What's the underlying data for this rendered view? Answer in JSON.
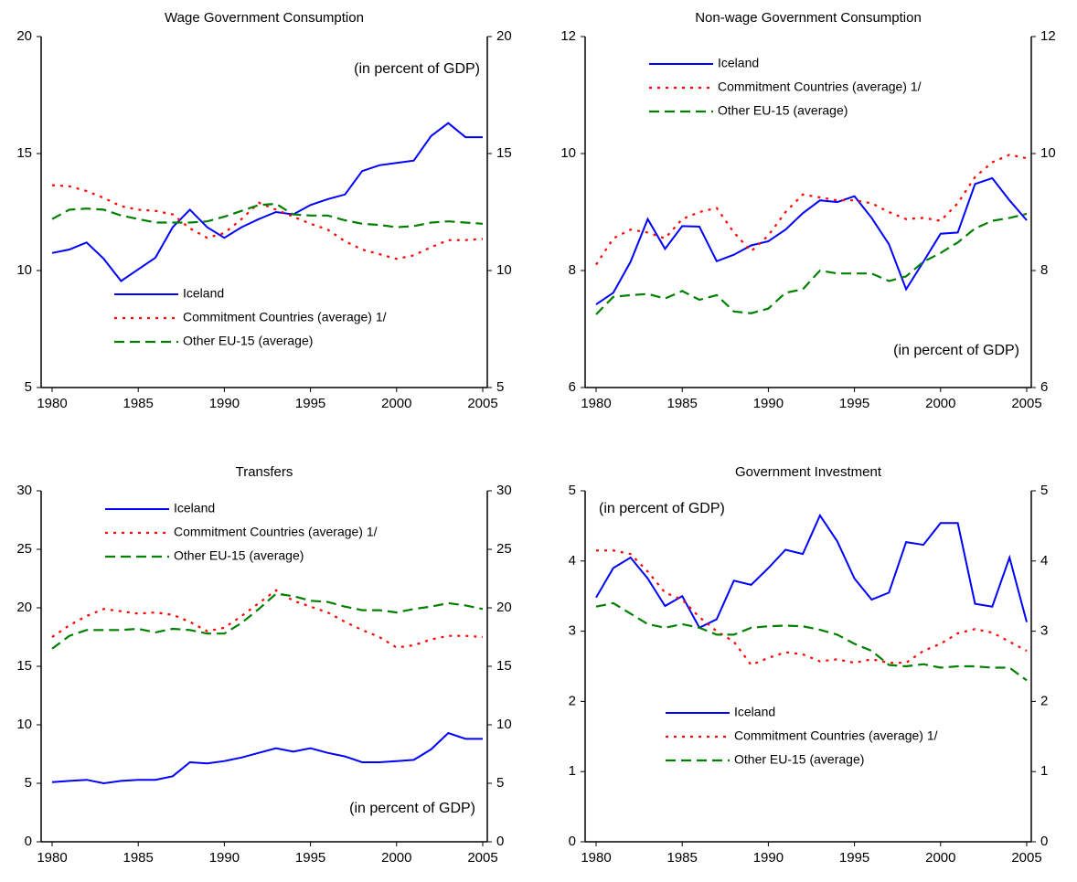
{
  "chart_data": [
    {
      "type": "line",
      "title": "Wage Government Consumption",
      "annotation": "(in percent of GDP)",
      "x": [
        1980,
        1981,
        1982,
        1983,
        1984,
        1985,
        1986,
        1987,
        1988,
        1989,
        1990,
        1991,
        1992,
        1993,
        1994,
        1995,
        1996,
        1997,
        1998,
        1999,
        2000,
        2001,
        2002,
        2003,
        2004,
        2005
      ],
      "xlim": [
        1980,
        2005
      ],
      "xticks": [
        1980,
        1985,
        1990,
        1995,
        2000,
        2005
      ],
      "ylim": [
        5,
        20
      ],
      "yticks": [
        5,
        10,
        15,
        20
      ],
      "series": [
        {
          "name": "Iceland",
          "color": "#0000ff",
          "values": [
            10.75,
            10.9,
            11.2,
            10.5,
            9.55,
            10.05,
            10.55,
            11.85,
            12.6,
            11.85,
            11.4,
            11.85,
            12.2,
            12.5,
            12.4,
            12.8,
            13.05,
            13.25,
            14.25,
            14.5,
            14.6,
            14.7,
            15.75,
            16.3,
            15.7,
            15.7
          ]
        },
        {
          "name": "Commitment Countries (average) 1/",
          "color": "#ff0000",
          "values": [
            13.65,
            13.6,
            13.4,
            13.1,
            12.75,
            12.6,
            12.55,
            12.4,
            11.8,
            11.4,
            11.6,
            12.2,
            12.9,
            12.6,
            12.3,
            12.0,
            11.75,
            11.25,
            10.9,
            10.7,
            10.5,
            10.65,
            11.0,
            11.3,
            11.3,
            11.35
          ]
        },
        {
          "name": "Other EU-15 (average)",
          "color": "#008000",
          "values": [
            12.2,
            12.6,
            12.65,
            12.6,
            12.35,
            12.2,
            12.05,
            12.05,
            12.05,
            12.1,
            12.3,
            12.55,
            12.8,
            12.85,
            12.4,
            12.35,
            12.35,
            12.15,
            12.0,
            11.95,
            11.85,
            11.9,
            12.05,
            12.1,
            12.05,
            12.0
          ]
        }
      ]
    },
    {
      "type": "line",
      "title": "Non-wage Government Consumption",
      "annotation": "(in percent of GDP)",
      "x": [
        1980,
        1981,
        1982,
        1983,
        1984,
        1985,
        1986,
        1987,
        1988,
        1989,
        1990,
        1991,
        1992,
        1993,
        1994,
        1995,
        1996,
        1997,
        1998,
        1999,
        2000,
        2001,
        2002,
        2003,
        2004,
        2005
      ],
      "xlim": [
        1980,
        2005
      ],
      "xticks": [
        1980,
        1985,
        1990,
        1995,
        2000,
        2005
      ],
      "ylim": [
        6,
        12
      ],
      "yticks": [
        6,
        8,
        10,
        12
      ],
      "series": [
        {
          "name": "Iceland",
          "color": "#0000ff",
          "values": [
            7.42,
            7.62,
            8.15,
            8.88,
            8.37,
            8.76,
            8.75,
            8.16,
            8.27,
            8.43,
            8.5,
            8.7,
            8.98,
            9.2,
            9.17,
            9.27,
            8.9,
            8.45,
            7.68,
            8.15,
            8.63,
            8.65,
            9.48,
            9.58,
            9.2,
            8.86
          ]
        },
        {
          "name": "Commitment Countries (average) 1/",
          "color": "#ff0000",
          "values": [
            8.1,
            8.55,
            8.7,
            8.65,
            8.55,
            8.88,
            9.0,
            9.07,
            8.65,
            8.33,
            8.6,
            9.0,
            9.3,
            9.25,
            9.2,
            9.2,
            9.15,
            9.0,
            8.88,
            8.9,
            8.85,
            9.15,
            9.6,
            9.85,
            9.98,
            9.92
          ]
        },
        {
          "name": "Other EU-15 (average)",
          "color": "#008000",
          "values": [
            7.25,
            7.55,
            7.58,
            7.6,
            7.52,
            7.65,
            7.5,
            7.58,
            7.3,
            7.27,
            7.35,
            7.62,
            7.68,
            8.0,
            7.95,
            7.95,
            7.95,
            7.82,
            7.9,
            8.15,
            8.3,
            8.48,
            8.72,
            8.85,
            8.9,
            8.97
          ]
        }
      ]
    },
    {
      "type": "line",
      "title": "Transfers",
      "annotation": "(in percent of GDP)",
      "x": [
        1980,
        1981,
        1982,
        1983,
        1984,
        1985,
        1986,
        1987,
        1988,
        1989,
        1990,
        1991,
        1992,
        1993,
        1994,
        1995,
        1996,
        1997,
        1998,
        1999,
        2000,
        2001,
        2002,
        2003,
        2004,
        2005
      ],
      "xlim": [
        1980,
        2005
      ],
      "xticks": [
        1980,
        1985,
        1990,
        1995,
        2000,
        2005
      ],
      "ylim": [
        0,
        30
      ],
      "yticks": [
        0,
        5,
        10,
        15,
        20,
        25,
        30
      ],
      "series": [
        {
          "name": "Iceland",
          "color": "#0000ff",
          "values": [
            5.1,
            5.2,
            5.3,
            5.0,
            5.2,
            5.3,
            5.3,
            5.6,
            6.8,
            6.7,
            6.9,
            7.2,
            7.6,
            8.0,
            7.7,
            8.0,
            7.6,
            7.3,
            6.8,
            6.8,
            6.9,
            7.0,
            7.9,
            9.3,
            8.8,
            8.8
          ]
        },
        {
          "name": "Commitment Countries (average) 1/",
          "color": "#ff0000",
          "values": [
            17.5,
            18.5,
            19.3,
            19.9,
            19.7,
            19.5,
            19.6,
            19.4,
            18.8,
            18.0,
            18.3,
            19.3,
            20.4,
            21.5,
            20.6,
            20.1,
            19.6,
            18.8,
            18.1,
            17.5,
            16.6,
            16.8,
            17.3,
            17.6,
            17.6,
            17.5
          ]
        },
        {
          "name": "Other EU-15 (average)",
          "color": "#008000",
          "values": [
            16.5,
            17.6,
            18.1,
            18.1,
            18.1,
            18.2,
            17.9,
            18.2,
            18.1,
            17.8,
            17.8,
            18.7,
            19.9,
            21.2,
            21.0,
            20.6,
            20.5,
            20.1,
            19.8,
            19.8,
            19.6,
            19.9,
            20.1,
            20.4,
            20.2,
            19.9
          ]
        }
      ]
    },
    {
      "type": "line",
      "title": "Government Investment",
      "annotation": "(in percent of GDP)",
      "x": [
        1980,
        1981,
        1982,
        1983,
        1984,
        1985,
        1986,
        1987,
        1988,
        1989,
        1990,
        1991,
        1992,
        1993,
        1994,
        1995,
        1996,
        1997,
        1998,
        1999,
        2000,
        2001,
        2002,
        2003,
        2004,
        2005
      ],
      "xlim": [
        1980,
        2005
      ],
      "xticks": [
        1980,
        1985,
        1990,
        1995,
        2000,
        2005
      ],
      "ylim": [
        0,
        5
      ],
      "yticks": [
        0,
        1,
        2,
        3,
        4,
        5
      ],
      "series": [
        {
          "name": "Iceland",
          "color": "#0000ff",
          "values": [
            3.48,
            3.9,
            4.05,
            3.75,
            3.36,
            3.5,
            3.05,
            3.17,
            3.72,
            3.66,
            3.9,
            4.16,
            4.1,
            4.65,
            4.28,
            3.75,
            3.45,
            3.55,
            4.27,
            4.23,
            4.54,
            4.54,
            3.39,
            3.35,
            4.05,
            3.13
          ]
        },
        {
          "name": "Commitment Countries (average) 1/",
          "color": "#ff0000",
          "values": [
            4.15,
            4.15,
            4.1,
            3.85,
            3.55,
            3.45,
            3.2,
            3.0,
            2.85,
            2.52,
            2.62,
            2.7,
            2.67,
            2.57,
            2.6,
            2.55,
            2.6,
            2.55,
            2.55,
            2.72,
            2.82,
            2.97,
            3.03,
            2.98,
            2.85,
            2.72
          ]
        },
        {
          "name": "Other EU-15 (average)",
          "color": "#008000",
          "values": [
            3.35,
            3.4,
            3.25,
            3.1,
            3.05,
            3.1,
            3.05,
            2.95,
            2.95,
            3.05,
            3.07,
            3.08,
            3.07,
            3.02,
            2.95,
            2.82,
            2.72,
            2.52,
            2.5,
            2.53,
            2.48,
            2.5,
            2.5,
            2.48,
            2.48,
            2.3
          ]
        }
      ]
    }
  ]
}
